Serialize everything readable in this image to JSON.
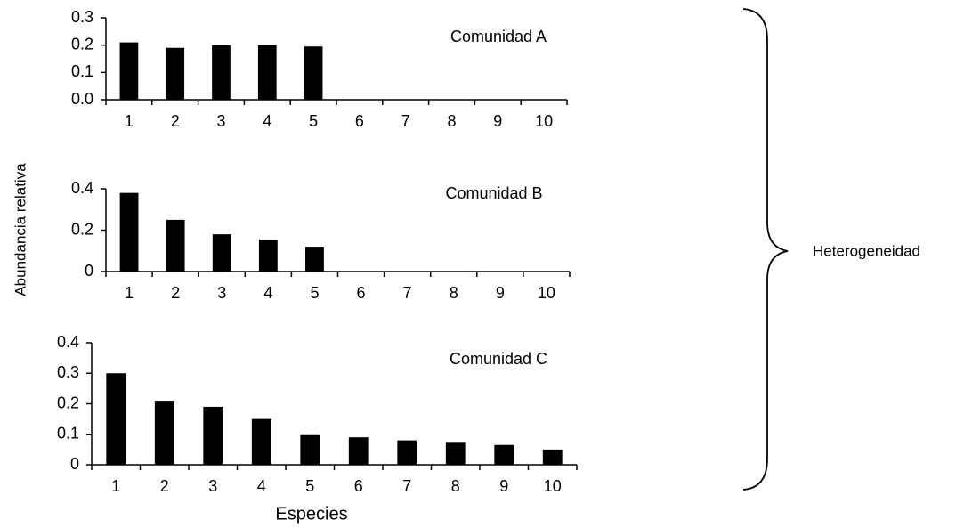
{
  "chart_data": [
    {
      "type": "bar",
      "title": "Comunidad  A",
      "categories": [
        "1",
        "2",
        "3",
        "4",
        "5",
        "6",
        "7",
        "8",
        "9",
        "10"
      ],
      "values": [
        0.21,
        0.19,
        0.2,
        0.2,
        0.195,
        0,
        0,
        0,
        0,
        0
      ],
      "color": "#000000",
      "ylim": [
        0,
        0.3
      ],
      "yticks": [
        {
          "value": 0,
          "label": "0.0"
        },
        0.1,
        0.2,
        0.3
      ]
    },
    {
      "type": "bar",
      "title": "Comunidad  B",
      "categories": [
        "1",
        "2",
        "3",
        "4",
        "5",
        "6",
        "7",
        "8",
        "9",
        "10"
      ],
      "values": [
        0.38,
        0.25,
        0.18,
        0.155,
        0.12,
        0,
        0,
        0,
        0,
        0
      ],
      "color": "#000000",
      "ylim": [
        0,
        0.4
      ],
      "yticks": [
        0,
        0.2,
        0.4
      ]
    },
    {
      "type": "bar",
      "title": "Comunidad  C",
      "categories": [
        "1",
        "2",
        "3",
        "4",
        "5",
        "6",
        "7",
        "8",
        "9",
        "10"
      ],
      "values": [
        0.3,
        0.21,
        0.19,
        0.15,
        0.1,
        0.09,
        0.08,
        0.075,
        0.065,
        0.05
      ],
      "color": "#000000",
      "ylim": [
        0,
        0.4
      ],
      "yticks": [
        0,
        0.1,
        0.2,
        0.3,
        0.4
      ]
    }
  ],
  "ylabel": "Abundancia relativa",
  "xlabel": "Especies",
  "annotation": "Heterogeneidad"
}
